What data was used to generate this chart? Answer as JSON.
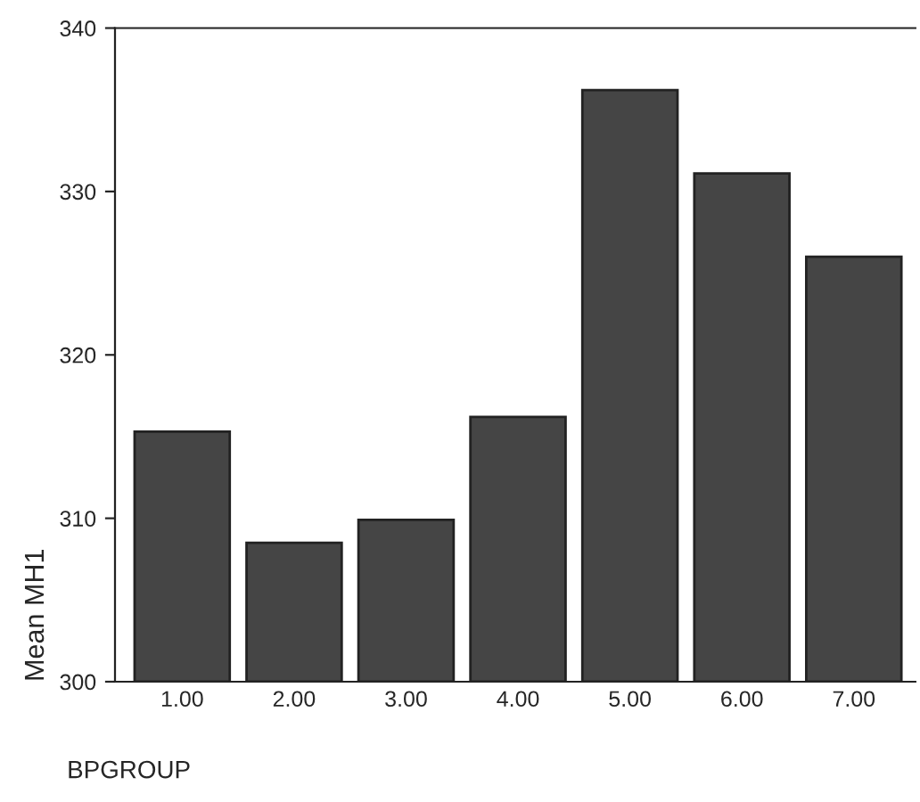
{
  "chart_data": {
    "type": "bar",
    "xlabel": "BPGROUP",
    "ylabel": "Mean MH1",
    "categories": [
      "1.00",
      "2.00",
      "3.00",
      "4.00",
      "5.00",
      "6.00",
      "7.00"
    ],
    "values": [
      315.3,
      308.5,
      309.9,
      316.2,
      336.2,
      331.1,
      326.0
    ],
    "color": "#454545",
    "ylim": [
      300,
      340
    ],
    "yticks": [
      300,
      310,
      320,
      330,
      340
    ],
    "grid": false,
    "legend": false
  }
}
